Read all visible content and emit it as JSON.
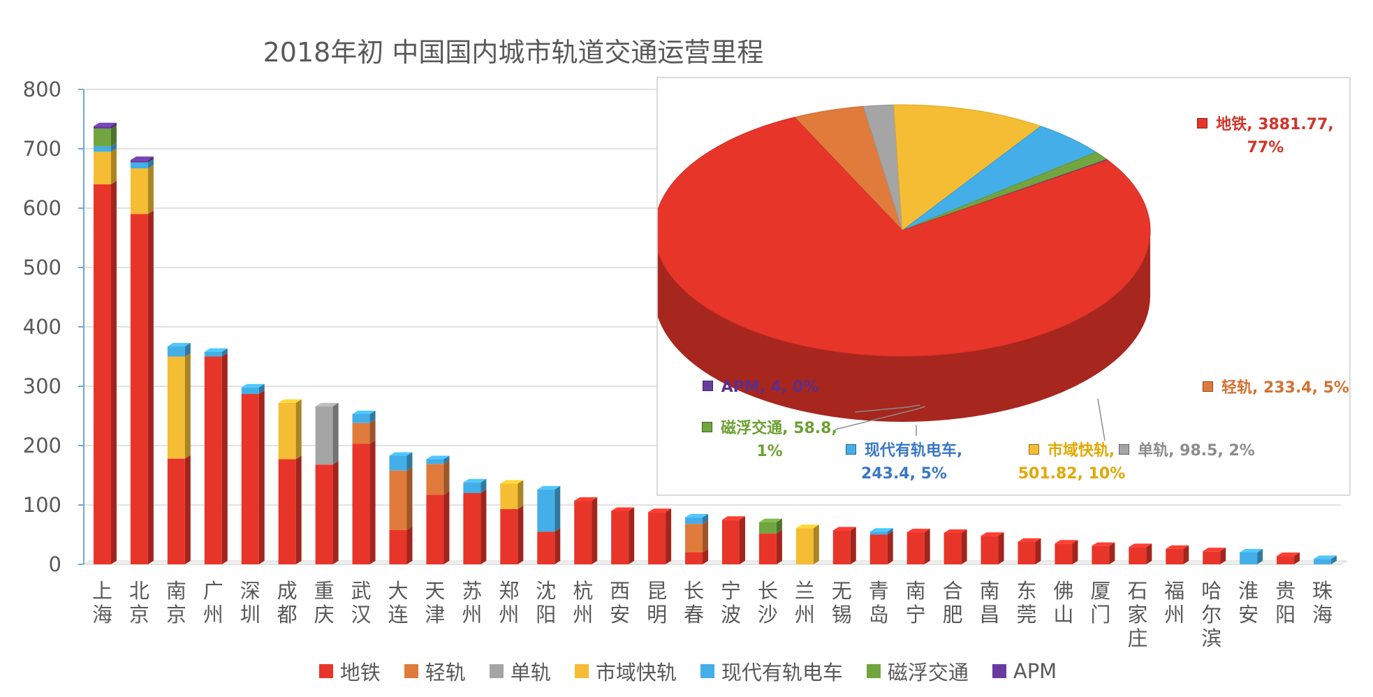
{
  "chart_data": [
    {
      "type": "bar",
      "stacked": true,
      "title": "2018年初 中国国内城市轨道交通运营里程",
      "ylim": [
        0,
        800
      ],
      "yticks": [
        0,
        100,
        200,
        300,
        400,
        500,
        600,
        700,
        800
      ],
      "grid": true,
      "legend_position": "bottom",
      "categories": [
        "上海",
        "北京",
        "南京",
        "广州",
        "深圳",
        "成都",
        "重庆",
        "武汉",
        "大连",
        "天津",
        "苏州",
        "郑州",
        "沈阳",
        "杭州",
        "西安",
        "昆明",
        "长春",
        "宁波",
        "长沙",
        "兰州",
        "无锡",
        "青岛",
        "南宁",
        "合肥",
        "南昌",
        "东莞",
        "佛山",
        "厦门",
        "石家庄",
        "福州",
        "哈尔滨",
        "淮安",
        "贵阳",
        "珠海"
      ],
      "series": [
        {
          "name": "地铁",
          "color": "#e8352a",
          "values": [
            640,
            590,
            178,
            350,
            287,
            177,
            168,
            203,
            58,
            117,
            120,
            93,
            55,
            107,
            90,
            88,
            20,
            75,
            52,
            0,
            57,
            50,
            54,
            53,
            48,
            38,
            35,
            31,
            29,
            26,
            22,
            0,
            14,
            0
          ]
        },
        {
          "name": "轻轨",
          "color": "#e07b3b",
          "values": [
            0,
            0,
            0,
            0,
            0,
            0,
            0,
            35,
            100,
            52,
            0,
            0,
            0,
            0,
            0,
            0,
            48,
            0,
            0,
            0,
            0,
            0,
            0,
            0,
            0,
            0,
            0,
            0,
            0,
            0,
            0,
            0,
            0,
            0
          ]
        },
        {
          "name": "单轨",
          "color": "#a5a5a5",
          "values": [
            0,
            0,
            0,
            0,
            0,
            0,
            98,
            0,
            0,
            0,
            0,
            0,
            0,
            0,
            0,
            0,
            0,
            0,
            0,
            0,
            0,
            0,
            0,
            0,
            0,
            0,
            0,
            0,
            0,
            0,
            0,
            0,
            0,
            0
          ]
        },
        {
          "name": "市域快轨",
          "color": "#f4bd33",
          "values": [
            55,
            77,
            172,
            0,
            0,
            95,
            0,
            0,
            0,
            0,
            0,
            43,
            0,
            0,
            0,
            0,
            0,
            0,
            0,
            61,
            0,
            0,
            0,
            0,
            0,
            0,
            0,
            0,
            0,
            0,
            0,
            0,
            0,
            0
          ]
        },
        {
          "name": "现代有轨电车",
          "color": "#44aee8",
          "values": [
            9,
            10,
            17,
            8,
            11,
            0,
            0,
            15,
            25,
            8,
            18,
            0,
            71,
            0,
            0,
            0,
            11,
            0,
            0,
            0,
            0,
            5,
            0,
            0,
            0,
            0,
            0,
            0,
            0,
            0,
            0,
            20,
            0,
            9
          ]
        },
        {
          "name": "磁浮交通",
          "color": "#70a540",
          "values": [
            30,
            0,
            0,
            0,
            0,
            0,
            0,
            0,
            0,
            0,
            0,
            0,
            0,
            0,
            0,
            0,
            0,
            0,
            19,
            0,
            0,
            0,
            0,
            0,
            0,
            0,
            0,
            0,
            0,
            0,
            0,
            0,
            0,
            0
          ]
        },
        {
          "name": "APM",
          "color": "#6a3aa0",
          "values": [
            4,
            4,
            0,
            0,
            0,
            0,
            0,
            0,
            0,
            0,
            0,
            0,
            0,
            0,
            0,
            0,
            0,
            0,
            0,
            0,
            0,
            0,
            0,
            0,
            0,
            0,
            0,
            0,
            0,
            0,
            0,
            0,
            0,
            0
          ]
        }
      ]
    },
    {
      "type": "pie",
      "slices": [
        {
          "name": "地铁",
          "value": 3881.77,
          "percent": "77%",
          "color": "#e8352a",
          "label": [
            "地铁, 3881.77,",
            "77%"
          ]
        },
        {
          "name": "轻轨",
          "value": 233.4,
          "percent": "5%",
          "color": "#e07b3b",
          "label": [
            "轻轨, 233.4, 5%"
          ]
        },
        {
          "name": "单轨",
          "value": 98.5,
          "percent": "2%",
          "color": "#a5a5a5",
          "label": [
            "单轨, 98.5, 2%"
          ]
        },
        {
          "name": "市域快轨",
          "value": 501.82,
          "percent": "10%",
          "color": "#f4bd33",
          "label": [
            "市域快轨,",
            "501.82, 10%"
          ]
        },
        {
          "name": "现代有轨电车",
          "value": 243.4,
          "percent": "5%",
          "color": "#44aee8",
          "label": [
            "现代有轨电车,",
            "243.4, 5%"
          ]
        },
        {
          "name": "磁浮交通",
          "value": 58.8,
          "percent": "1%",
          "color": "#70a540",
          "label": [
            "磁浮交通, 58.8,",
            "1%"
          ]
        },
        {
          "name": "APM",
          "value": 4,
          "percent": "0%",
          "color": "#6a3aa0",
          "label": [
            "APM, 4, 0%"
          ]
        }
      ]
    }
  ],
  "pie_label_colors": {
    "地铁": "#d0342a",
    "轻轨": "#d27232",
    "单轨": "#8c8c8c",
    "市域快轨": "#e0a800",
    "现代有轨电车": "#3a78c4",
    "磁浮交通": "#6ca132",
    "APM": "#5b2f8a"
  }
}
